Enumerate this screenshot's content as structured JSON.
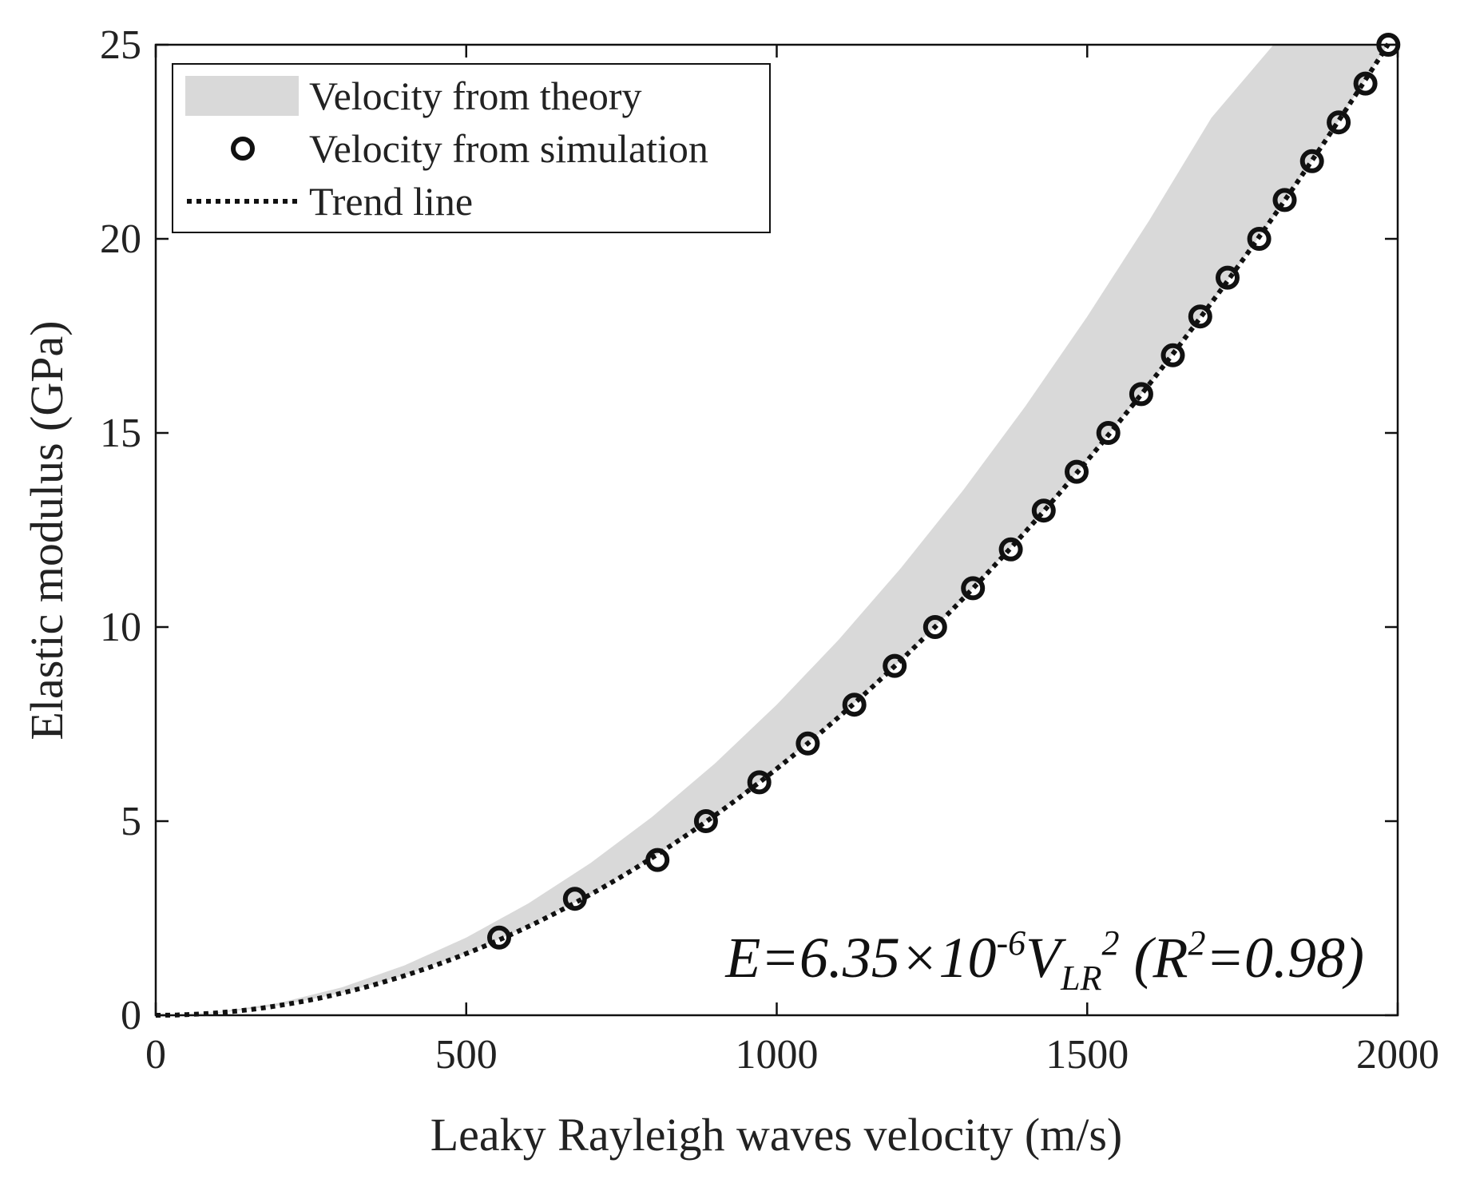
{
  "chart_data": {
    "type": "scatter",
    "xlabel": "Leaky Rayleigh waves velocity (m/s)",
    "ylabel": "Elastic modulus (GPa)",
    "xlim": [
      0,
      2000
    ],
    "ylim": [
      0,
      25
    ],
    "xticks": [
      "0",
      "500",
      "1000",
      "1500",
      "2000"
    ],
    "yticks": [
      "0",
      "5",
      "10",
      "15",
      "20",
      "25"
    ],
    "grid": false,
    "legend": {
      "position": "top-left",
      "entries": [
        "Velocity from theory",
        "Velocity from simulation",
        "Trend line"
      ]
    },
    "theory_band": {
      "name": "Velocity from theory",
      "x": [
        0,
        100,
        200,
        300,
        400,
        500,
        600,
        700,
        800,
        900,
        1000,
        1100,
        1200,
        1300,
        1400,
        1500,
        1600,
        1700,
        1800,
        1900,
        1980
      ],
      "lower": [
        0,
        0.06,
        0.25,
        0.57,
        1.02,
        1.59,
        2.29,
        3.11,
        4.06,
        5.14,
        6.35,
        7.68,
        9.14,
        10.73,
        12.45,
        14.29,
        16.26,
        18.35,
        20.57,
        22.92,
        24.9
      ],
      "upper": [
        0,
        0.08,
        0.32,
        0.72,
        1.28,
        2.0,
        2.88,
        3.92,
        5.12,
        6.48,
        8.0,
        9.68,
        11.52,
        13.52,
        15.68,
        18.0,
        20.48,
        23.12,
        25.0,
        25.0,
        25.0
      ]
    },
    "simulation": {
      "name": "Velocity from simulation",
      "x": [
        553,
        675,
        808,
        886,
        972,
        1050,
        1125,
        1190,
        1255,
        1316,
        1377,
        1430,
        1483,
        1534,
        1587,
        1638,
        1682,
        1726,
        1777,
        1818,
        1862,
        1905,
        1948,
        1985
      ],
      "y": [
        2,
        3,
        4,
        5,
        6,
        7,
        8,
        9,
        10,
        11,
        12,
        13,
        14,
        15,
        16,
        17,
        18,
        19,
        20,
        21,
        22,
        23,
        24,
        25
      ]
    },
    "trend": {
      "name": "Trend line",
      "coefficient": 6.35e-06,
      "x_range": [
        0,
        1985
      ]
    },
    "annotation": {
      "prefix": "E=6.35×10",
      "exp": "-6",
      "v": "V",
      "sub": "LR",
      "sq": "2",
      "r_open": " (R",
      "r_sq": "2",
      "r_close": "=0.98)"
    }
  }
}
